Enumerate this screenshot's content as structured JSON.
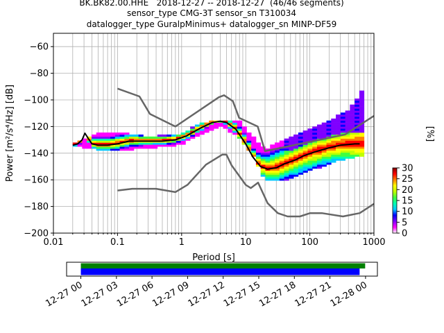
{
  "header": {
    "line1": "BK.BK82.00.HHE   2018-12-27 -- 2018-12-27  (46/46 segments)",
    "line2": "sensor_type CMG-3T sensor_sn T310034",
    "line3": "datalogger_type GuralpMinimus+ datalogger_sn MINP-DF59"
  },
  "colors": {
    "model_curve": "#666666",
    "mode_curve": "#000000",
    "coverage_top": "#008000",
    "coverage_bottom": "#0000ff",
    "grid": "#b0b0b0"
  },
  "chart_data": [
    {
      "type": "heatmap",
      "title": "",
      "xlabel": "Period [s]",
      "ylabel": "Power [m²/s⁴/Hz] [dB]",
      "x_scale": "log",
      "xlim": [
        0.01,
        1000
      ],
      "ylim": [
        -200,
        -50
      ],
      "x_ticks": [
        "0.01",
        "0.1",
        "1",
        "10",
        "100",
        "1000"
      ],
      "y_ticks": [
        "−200",
        "−180",
        "−160",
        "−140",
        "−120",
        "−100",
        "−80",
        "−60"
      ],
      "grid": true,
      "colorbar": {
        "label": "[%]",
        "range": [
          0,
          30
        ],
        "ticks": [
          "0",
          "5",
          "10",
          "15",
          "20",
          "25",
          "30"
        ],
        "colormap": [
          "#ffffff",
          "#ff00ff",
          "#7f00ff",
          "#0000ff",
          "#00c8ff",
          "#00ffb0",
          "#40ff40",
          "#c0ff00",
          "#ffff00",
          "#ff8000",
          "#ff0000",
          "#800000"
        ]
      },
      "series": [
        {
          "name": "",
          "role": "high noise model",
          "x": [
            0.1,
            0.22,
            0.32,
            0.8,
            3.8,
            4.6,
            6.3,
            7.9,
            15.4,
            20,
            354.8,
            1000
          ],
          "y": [
            -91.5,
            -97.4,
            -110.5,
            -120,
            -98,
            -96.5,
            -101,
            -113.5,
            -120,
            -138.5,
            -126,
            -112
          ]
        },
        {
          "name": "",
          "role": "low noise model",
          "x": [
            0.1,
            0.17,
            0.4,
            0.8,
            1.24,
            2.4,
            4.3,
            5,
            6,
            10,
            12,
            15.6,
            21.9,
            31.6,
            45,
            70,
            101,
            154,
            328,
            600,
            1000
          ],
          "y": [
            -168,
            -166.7,
            -166.7,
            -169.2,
            -163.7,
            -148.6,
            -141.1,
            -141.1,
            -149,
            -163.8,
            -166.2,
            -162.1,
            -177.5,
            -185,
            -187.5,
            -187.5,
            -185,
            -185,
            -187.5,
            -185,
            -178
          ]
        },
        {
          "name": "",
          "role": "mode",
          "x": [
            0.02,
            0.024,
            0.028,
            0.031,
            0.035,
            0.04,
            0.05,
            0.07,
            0.1,
            0.15,
            0.2,
            0.3,
            0.5,
            0.8,
            1.2,
            2,
            3,
            4,
            5,
            7,
            10,
            13,
            17,
            22,
            30,
            40,
            60,
            80,
            120,
            200,
            300,
            500,
            600
          ],
          "y": [
            -134,
            -133,
            -130,
            -125,
            -129,
            -133,
            -134,
            -134,
            -133,
            -131,
            -131,
            -131,
            -131,
            -130,
            -127,
            -121,
            -117,
            -116,
            -117,
            -122,
            -133,
            -143,
            -150,
            -152,
            -151,
            -148,
            -145,
            -142,
            -139,
            -136,
            -134,
            -133,
            -133
          ]
        }
      ],
      "histogram_spread": {
        "x": [
          0.02,
          0.05,
          0.1,
          0.3,
          1,
          2,
          4,
          8,
          14,
          20,
          40,
          100,
          200,
          400,
          700
        ],
        "low": [
          -134,
          -137,
          -137,
          -136,
          -133,
          -125,
          -119,
          -128,
          -144,
          -160,
          -160,
          -153,
          -147,
          -143,
          -141
        ],
        "high": [
          -134,
          -126,
          -125,
          -128,
          -126,
          -118,
          -116,
          -117,
          -130,
          -138,
          -130,
          -122,
          -116,
          -108,
          -92
        ]
      }
    },
    {
      "type": "bar",
      "title": "",
      "role": "data coverage",
      "x_ticks": [
        "12-27 00",
        "12-27 03",
        "12-27 06",
        "12-27 09",
        "12-27 12",
        "12-27 15",
        "12-27 18",
        "12-27 21",
        "12-28 00"
      ],
      "x_hours": [
        0,
        3,
        6,
        9,
        12,
        15,
        18,
        21,
        24
      ],
      "xlim_hours": [
        -1.2,
        25
      ],
      "series": [
        {
          "name": "",
          "role": "used",
          "start_hours": 0,
          "end_hours": 23.5
        },
        {
          "name": "",
          "role": "available",
          "start_hours": 0,
          "end_hours": 23.5
        }
      ]
    }
  ]
}
